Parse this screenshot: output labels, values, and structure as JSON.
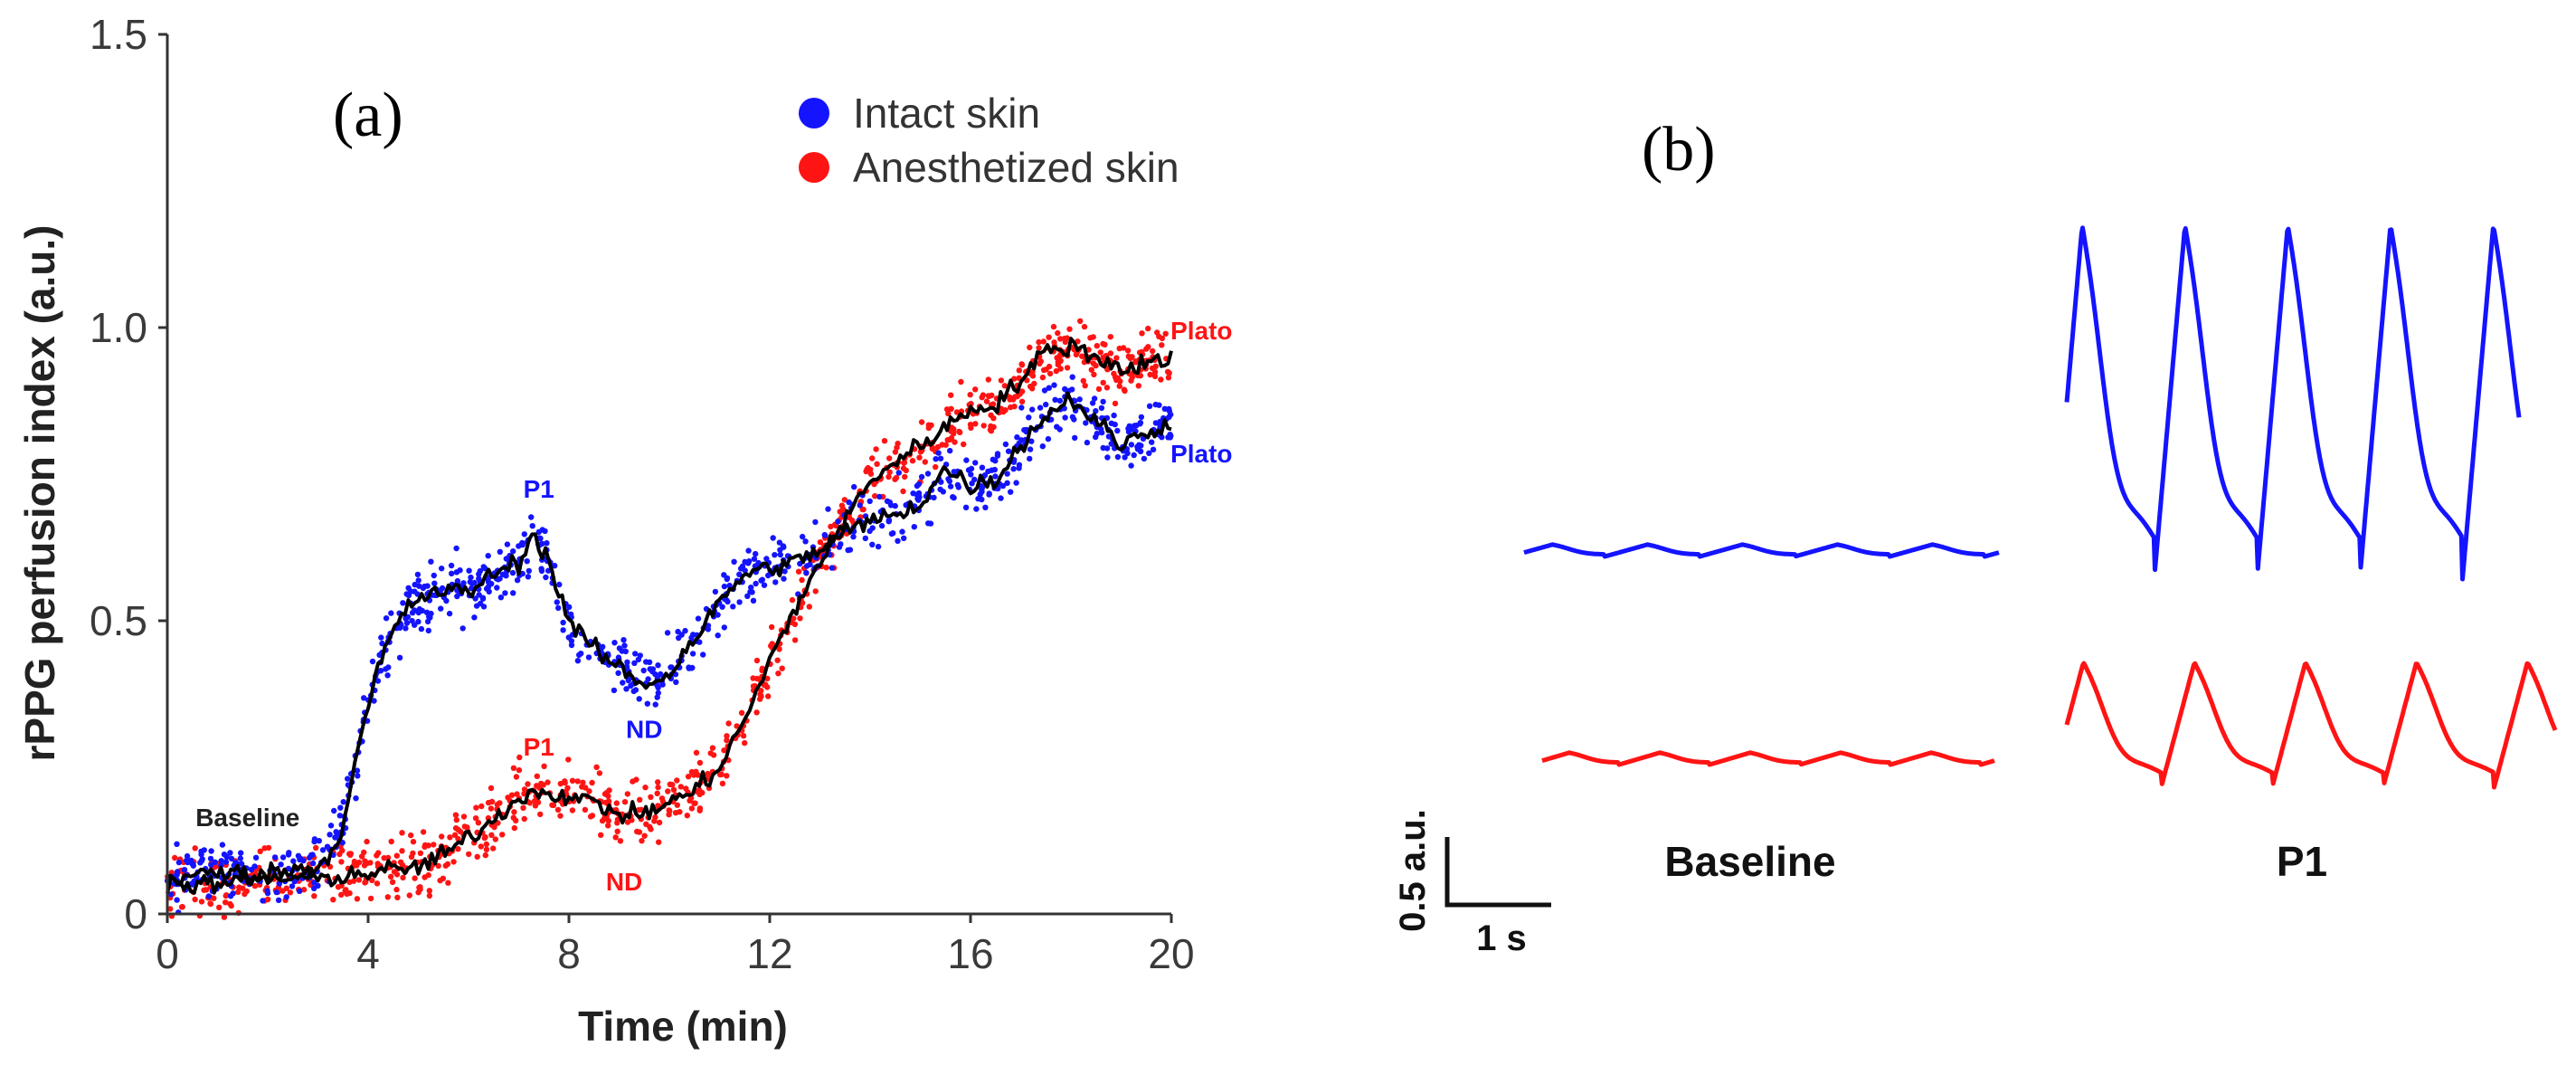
{
  "colors": {
    "intact": "#1414ff",
    "anesthetized": "#ff1414",
    "trend": "#000000",
    "axis": "#333333"
  },
  "chart_data": [
    {
      "type": "scatter",
      "panel_label": "(a)",
      "xlabel": "Time (min)",
      "ylabel": "rPPG perfusion index (a.u.)",
      "xlim": [
        0,
        20
      ],
      "ylim": [
        0,
        1.5
      ],
      "xticks": [
        0,
        4,
        8,
        12,
        16,
        20
      ],
      "xtick_labels": [
        "0",
        "4",
        "8",
        "12",
        "16",
        "20"
      ],
      "yticks": [
        0,
        0.5,
        1.0,
        1.5
      ],
      "ytick_labels": [
        "0",
        "0.5",
        "1.0",
        "1.5"
      ],
      "legend": {
        "placement": "top-right",
        "entries": [
          "Intact skin",
          "Anesthetized skin"
        ]
      },
      "series": [
        {
          "name": "Intact skin",
          "color": "#1414ff",
          "x": [
            0,
            1,
            2,
            3,
            3.4,
            3.8,
            4.2,
            4.6,
            5,
            5.5,
            6,
            6.5,
            7,
            7.3,
            7.6,
            8,
            8.5,
            9,
            9.5,
            10,
            10.5,
            11,
            11.5,
            12,
            12.5,
            13,
            13.5,
            14,
            14.5,
            15,
            15.5,
            16,
            16.5,
            17,
            17.5,
            18,
            18.5,
            19,
            19.5,
            20
          ],
          "y": [
            0.06,
            0.07,
            0.07,
            0.08,
            0.12,
            0.28,
            0.42,
            0.5,
            0.54,
            0.55,
            0.55,
            0.58,
            0.6,
            0.65,
            0.6,
            0.5,
            0.45,
            0.42,
            0.39,
            0.41,
            0.47,
            0.53,
            0.58,
            0.59,
            0.6,
            0.62,
            0.65,
            0.67,
            0.68,
            0.7,
            0.76,
            0.73,
            0.74,
            0.8,
            0.85,
            0.88,
            0.84,
            0.8,
            0.82,
            0.84
          ]
        },
        {
          "name": "Anesthetized skin",
          "color": "#ff1414",
          "x": [
            0,
            1,
            2,
            3,
            4,
            5,
            5.5,
            6,
            6.5,
            7,
            7.5,
            8,
            8.5,
            9,
            9.5,
            10,
            10.5,
            11,
            11.5,
            12,
            12.5,
            13,
            13.5,
            14,
            14.5,
            15,
            15.5,
            16,
            16.5,
            17,
            17.5,
            18,
            18.5,
            19,
            19.5,
            20
          ],
          "y": [
            0.05,
            0.05,
            0.06,
            0.06,
            0.07,
            0.08,
            0.1,
            0.13,
            0.16,
            0.2,
            0.21,
            0.2,
            0.19,
            0.17,
            0.17,
            0.19,
            0.21,
            0.25,
            0.33,
            0.43,
            0.52,
            0.6,
            0.67,
            0.74,
            0.77,
            0.8,
            0.83,
            0.86,
            0.87,
            0.91,
            0.96,
            0.97,
            0.95,
            0.93,
            0.94,
            0.95
          ]
        }
      ],
      "annotations": [
        {
          "text": "Baseline",
          "x": 1.6,
          "y": 0.15,
          "color": "#222222"
        },
        {
          "text": "P1",
          "x": 7.4,
          "y": 0.71,
          "color": "#1414ff"
        },
        {
          "text": "ND",
          "x": 9.5,
          "y": 0.3,
          "color": "#1414ff"
        },
        {
          "text": "P1",
          "x": 7.4,
          "y": 0.27,
          "color": "#ff1414"
        },
        {
          "text": "ND",
          "x": 9.1,
          "y": 0.04,
          "color": "#ff1414"
        },
        {
          "text": "Plato",
          "x": 20.6,
          "y": 0.98,
          "color": "#ff1414"
        },
        {
          "text": "Plato",
          "x": 20.6,
          "y": 0.77,
          "color": "#1414ff"
        }
      ]
    },
    {
      "type": "line",
      "panel_label": "(b)",
      "scale_bar": {
        "y_label": "0.5 a.u.",
        "x_label": "1 s",
        "y_value": 0.5,
        "x_value": 1
      },
      "traces": [
        {
          "group": "Baseline",
          "series": "Intact skin",
          "color": "#1414ff",
          "beats": 5,
          "amplitude": 0.2
        },
        {
          "group": "Baseline",
          "series": "Anesthetized skin",
          "color": "#ff1414",
          "beats": 5,
          "amplitude": 0.16
        },
        {
          "group": "P1",
          "series": "Intact skin",
          "color": "#1414ff",
          "beats": 4.4,
          "amplitude": 1.15
        },
        {
          "group": "P1",
          "series": "Anesthetized skin",
          "color": "#ff1414",
          "beats": 4.4,
          "amplitude": 0.4
        }
      ],
      "group_labels": [
        "Baseline",
        "P1"
      ]
    }
  ]
}
